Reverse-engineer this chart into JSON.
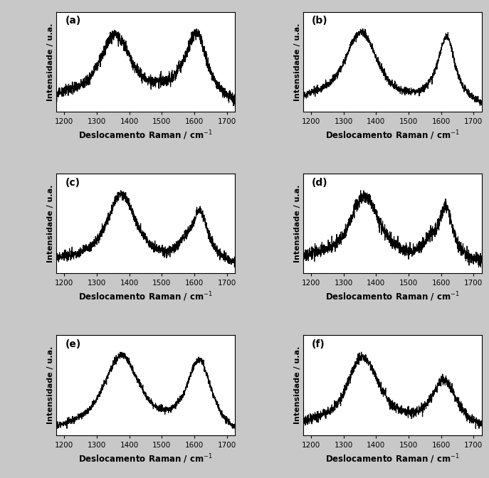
{
  "panels": [
    "(a)",
    "(b)",
    "(c)",
    "(d)",
    "(e)",
    "(f)"
  ],
  "xlabel": "Deslocamento Raman / cm$^{-1}$",
  "ylabel": "Intensidade / u.a.",
  "xlim": [
    1175,
    1725
  ],
  "xticks": [
    1200,
    1300,
    1400,
    1500,
    1600,
    1700
  ],
  "line_color": "#000000",
  "line_width": 0.85,
  "figsize": [
    6.87,
    6.72
  ],
  "dpi": 100,
  "outer_bg": "#c8c8c8",
  "inner_bg": "#ffffff"
}
